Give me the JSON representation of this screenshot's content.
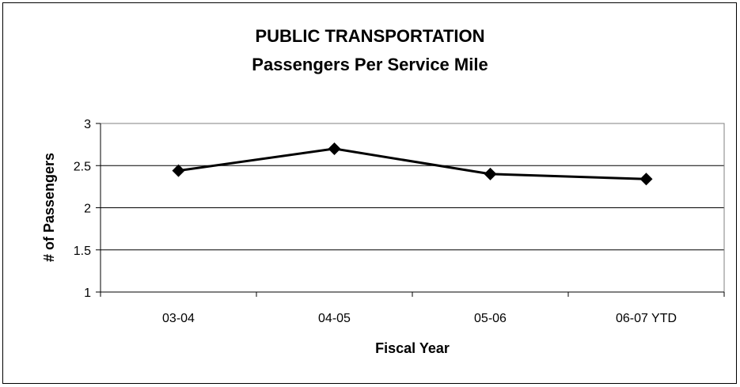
{
  "chart_data": {
    "type": "line",
    "title": "PUBLIC TRANSPORTATION",
    "subtitle": "Passengers Per Service Mile",
    "xlabel": "Fiscal Year",
    "ylabel": "# of Passengers",
    "categories": [
      "03-04",
      "04-05",
      "05-06",
      "06-07 YTD"
    ],
    "values": [
      2.44,
      2.7,
      2.4,
      2.34
    ],
    "ylim": [
      1,
      3
    ],
    "yticks": [
      "1",
      "1.5",
      "2",
      "2.5",
      "3"
    ],
    "grid": true,
    "legend": "none",
    "line_color": "#000000",
    "plot_border_color": "#808080"
  }
}
